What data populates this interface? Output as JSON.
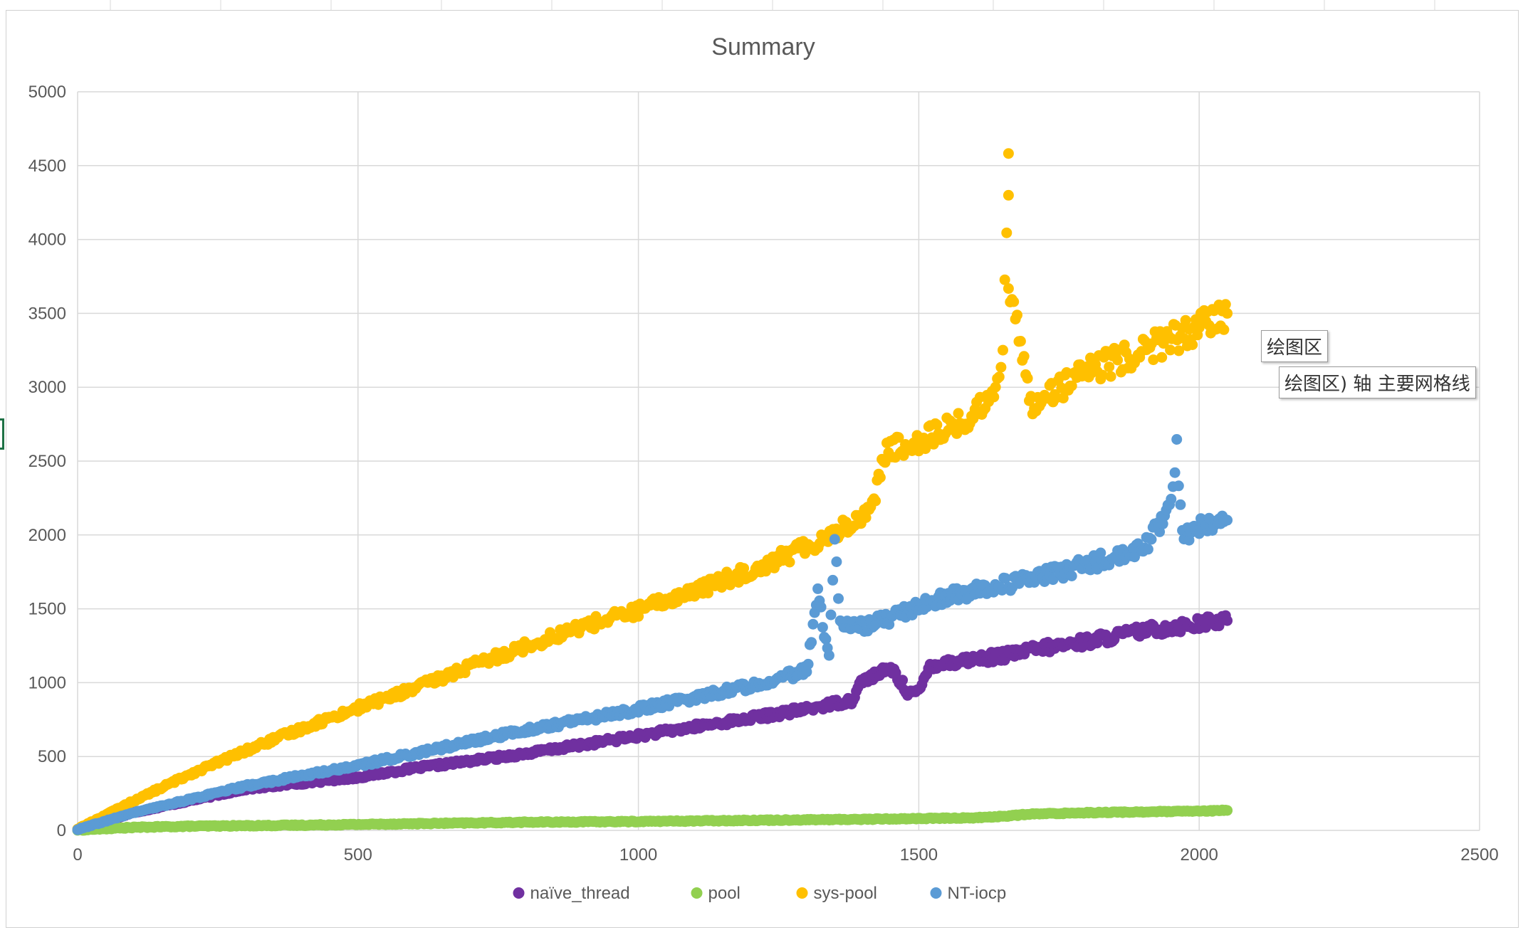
{
  "chart_data": {
    "type": "scatter",
    "title": "Summary",
    "xlim": [
      0,
      2500
    ],
    "ylim": [
      0,
      5000
    ],
    "x_ticks": [
      "0",
      "500",
      "1000",
      "1500",
      "2000",
      "2500"
    ],
    "y_ticks": [
      "0",
      "500",
      "1000",
      "1500",
      "2000",
      "2500",
      "3000",
      "3500",
      "4000",
      "4500",
      "5000"
    ],
    "grid": true,
    "legend_position": "bottom",
    "series": [
      {
        "name": "naïve_thread",
        "color": "#7030A0",
        "x": [
          0,
          100,
          200,
          300,
          400,
          500,
          600,
          700,
          800,
          900,
          1000,
          1100,
          1200,
          1300,
          1350,
          1380,
          1400,
          1430,
          1450,
          1480,
          1500,
          1520,
          1600,
          1650,
          1700,
          1800,
          1900,
          2000,
          2050
        ],
        "y": [
          5,
          120,
          200,
          280,
          320,
          360,
          420,
          470,
          520,
          580,
          640,
          700,
          760,
          820,
          860,
          880,
          1020,
          1060,
          1100,
          940,
          930,
          1120,
          1160,
          1180,
          1220,
          1280,
          1350,
          1400,
          1420
        ]
      },
      {
        "name": "pool",
        "color": "#92D050",
        "x": [
          0,
          100,
          200,
          400,
          600,
          800,
          1000,
          1200,
          1400,
          1600,
          1650,
          1700,
          1800,
          1900,
          2000,
          2050
        ],
        "y": [
          2,
          20,
          28,
          35,
          45,
          55,
          60,
          68,
          75,
          85,
          95,
          110,
          120,
          125,
          130,
          135
        ]
      },
      {
        "name": "sys-pool",
        "color": "#FFC000",
        "x": [
          0,
          100,
          200,
          300,
          400,
          500,
          600,
          700,
          800,
          900,
          1000,
          1100,
          1200,
          1300,
          1350,
          1400,
          1420,
          1440,
          1500,
          1550,
          1600,
          1640,
          1650,
          1660,
          1660,
          1660,
          1700,
          1800,
          1900,
          2000,
          2050
        ],
        "y": [
          10,
          200,
          380,
          540,
          690,
          830,
          960,
          1110,
          1250,
          1380,
          1490,
          1620,
          1760,
          1920,
          2020,
          2120,
          2240,
          2560,
          2640,
          2720,
          2800,
          3040,
          3280,
          4550,
          4340,
          3700,
          2900,
          3100,
          3250,
          3400,
          3500
        ]
      },
      {
        "name": "NT-iocp",
        "color": "#5B9BD5",
        "x": [
          0,
          100,
          200,
          300,
          400,
          500,
          600,
          700,
          800,
          900,
          1000,
          1100,
          1200,
          1300,
          1320,
          1340,
          1350,
          1360,
          1400,
          1450,
          1500,
          1550,
          1600,
          1700,
          1800,
          1900,
          1950,
          1960,
          1970,
          2000,
          2050
        ],
        "y": [
          5,
          120,
          210,
          300,
          370,
          440,
          520,
          600,
          680,
          750,
          820,
          900,
          980,
          1080,
          1600,
          1150,
          2030,
          1400,
          1380,
          1440,
          1520,
          1580,
          1620,
          1700,
          1800,
          1900,
          2200,
          2600,
          2000,
          2050,
          2100
        ]
      }
    ]
  },
  "tooltips": {
    "hover_label": "绘图区",
    "hover_label_2": "绘图区",
    "gridline_suffix": ") 轴 主要网格线"
  }
}
